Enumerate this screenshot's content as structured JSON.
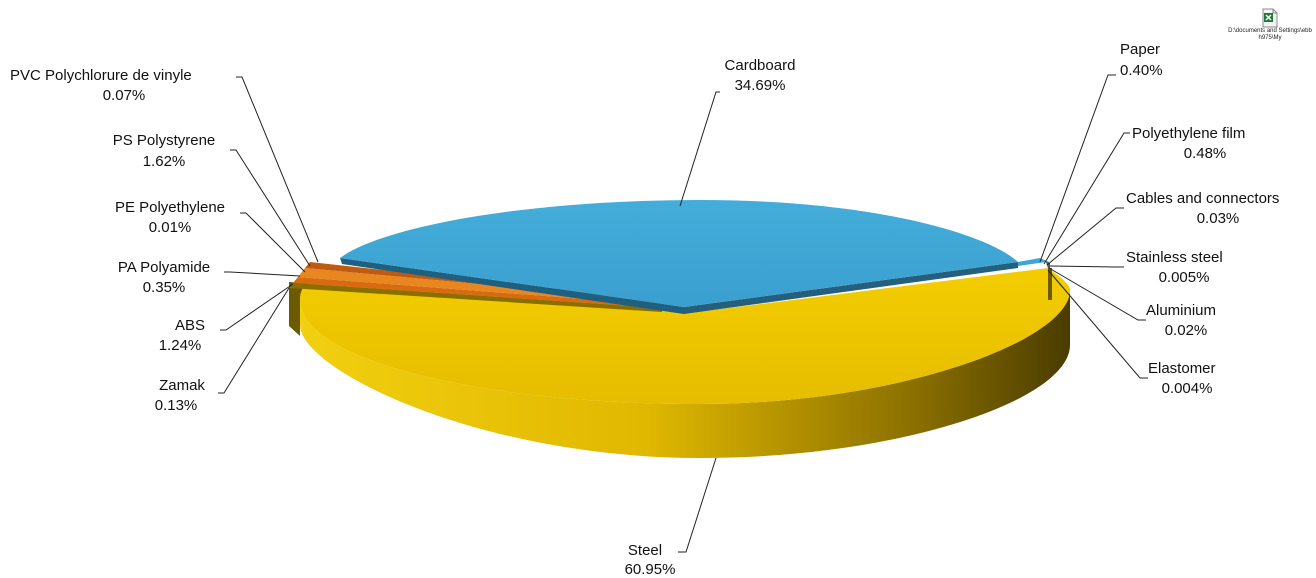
{
  "chart_data": {
    "type": "pie",
    "style": "3d-exploded",
    "slices": [
      {
        "name": "Cardboard",
        "label": "34.69%",
        "value": 34.69,
        "color": "#3ea6d4"
      },
      {
        "name": "Paper",
        "label": "0.40%",
        "value": 0.4,
        "color": "#3ea6d4"
      },
      {
        "name": "Polyethylene film",
        "label": "0.48%",
        "value": 0.48,
        "color": "#2f8fbf"
      },
      {
        "name": "Cables and connectors",
        "label": "0.03%",
        "value": 0.03,
        "color": "#8e8e8e"
      },
      {
        "name": "Stainless steel",
        "label": "0.005%",
        "value": 0.005,
        "color": "#9c9c9c"
      },
      {
        "name": "Aluminium",
        "label": "0.02%",
        "value": 0.02,
        "color": "#b0b0b0"
      },
      {
        "name": "Elastomer",
        "label": "0.004%",
        "value": 0.004,
        "color": "#7a7a7a"
      },
      {
        "name": "Steel",
        "label": "60.95%",
        "value": 60.95,
        "color": "#ecc400"
      },
      {
        "name": "Zamak",
        "label": "0.13%",
        "value": 0.13,
        "color": "#c9a000"
      },
      {
        "name": "ABS",
        "label": "1.24%",
        "value": 1.24,
        "color": "#b8960a"
      },
      {
        "name": "PA Polyamide",
        "label": "0.35%",
        "value": 0.35,
        "color": "#e07a1f"
      },
      {
        "name": "PE Polyethylene",
        "label": "0.01%",
        "value": 0.01,
        "color": "#d86b12"
      },
      {
        "name": "PS Polystyrene",
        "label": "1.62%",
        "value": 1.62,
        "color": "#e8861f"
      },
      {
        "name": "PVC Polychlorure de vinyle",
        "label": "0.07%",
        "value": 0.07,
        "color": "#c05a10"
      }
    ]
  },
  "attachment": {
    "icon": "excel-file-icon",
    "caption": "D:\\documents and Settings\\ebbh975\\My"
  }
}
